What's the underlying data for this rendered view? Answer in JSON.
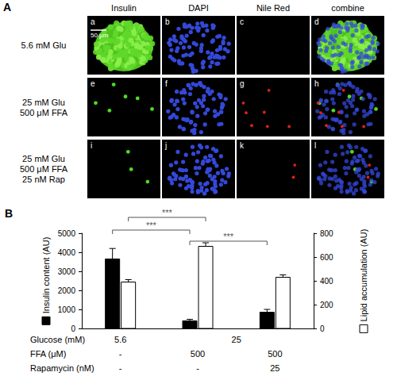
{
  "panel_a": {
    "label": "A",
    "columns": [
      "Insulin",
      "DAPI",
      "Nile Red",
      "combine"
    ],
    "rows": [
      {
        "label": [
          "5.6 mM Glu"
        ],
        "panels": [
          "a",
          "b",
          "c",
          "d"
        ]
      },
      {
        "label": [
          "25 mM Glu",
          "500 μM FFA"
        ],
        "panels": [
          "e",
          "f",
          "g",
          "h"
        ]
      },
      {
        "label": [
          "25 mM Glu",
          "500 μM FFA",
          "25 nM Rap"
        ],
        "panels": [
          "i",
          "j",
          "k",
          "l"
        ]
      }
    ],
    "scale_bar": "50 μm"
  },
  "chart_data": {
    "panel_label": "B",
    "type": "bar",
    "categories": [
      null,
      null,
      null
    ],
    "conditions": [
      {
        "label": "Glucose (mM)",
        "cells": [
          {
            "text": "5.6",
            "categories": [
              0
            ]
          },
          {
            "text": "25",
            "categories": [
              1,
              2
            ]
          }
        ]
      },
      {
        "label": "FFA (μM)",
        "cells": [
          {
            "text": "-",
            "categories": [
              0
            ]
          },
          {
            "text": "500",
            "categories": [
              1
            ]
          },
          {
            "text": "500",
            "categories": [
              2
            ]
          }
        ]
      },
      {
        "label": "Rapamycin (nM)",
        "cells": [
          {
            "text": "-",
            "categories": [
              0
            ]
          },
          {
            "text": "-",
            "categories": [
              1
            ]
          },
          {
            "text": "25",
            "categories": [
              2
            ]
          }
        ]
      }
    ],
    "series": [
      {
        "name": "Insulin content (AU)",
        "color": "#000000",
        "values": [
          3650,
          400,
          850
        ],
        "errors": [
          550,
          80,
          150
        ]
      },
      {
        "name": "Lipid accumulation (AU)",
        "color": "#ffffff",
        "axis": "y2",
        "values": [
          390,
          690,
          430
        ],
        "errors": [
          20,
          30,
          20
        ]
      }
    ],
    "ylim": [
      0,
      5000
    ],
    "yticks": [
      0,
      1000,
      2000,
      3000,
      4000,
      5000
    ],
    "y2lim": [
      0,
      800
    ],
    "y2ticks": [
      0,
      200,
      400,
      600,
      800
    ],
    "significance": [
      {
        "label": "***",
        "from": {
          "series": 1,
          "category": 0
        },
        "to": {
          "series": 1,
          "category": 1
        }
      },
      {
        "label": "***",
        "from": {
          "series": 0,
          "category": 0
        },
        "to": {
          "series": 0,
          "category": 1
        }
      },
      {
        "label": "***",
        "from": {
          "series": 0,
          "category": 1
        },
        "to": {
          "series": 0,
          "category": 2
        }
      }
    ],
    "grid": false
  }
}
